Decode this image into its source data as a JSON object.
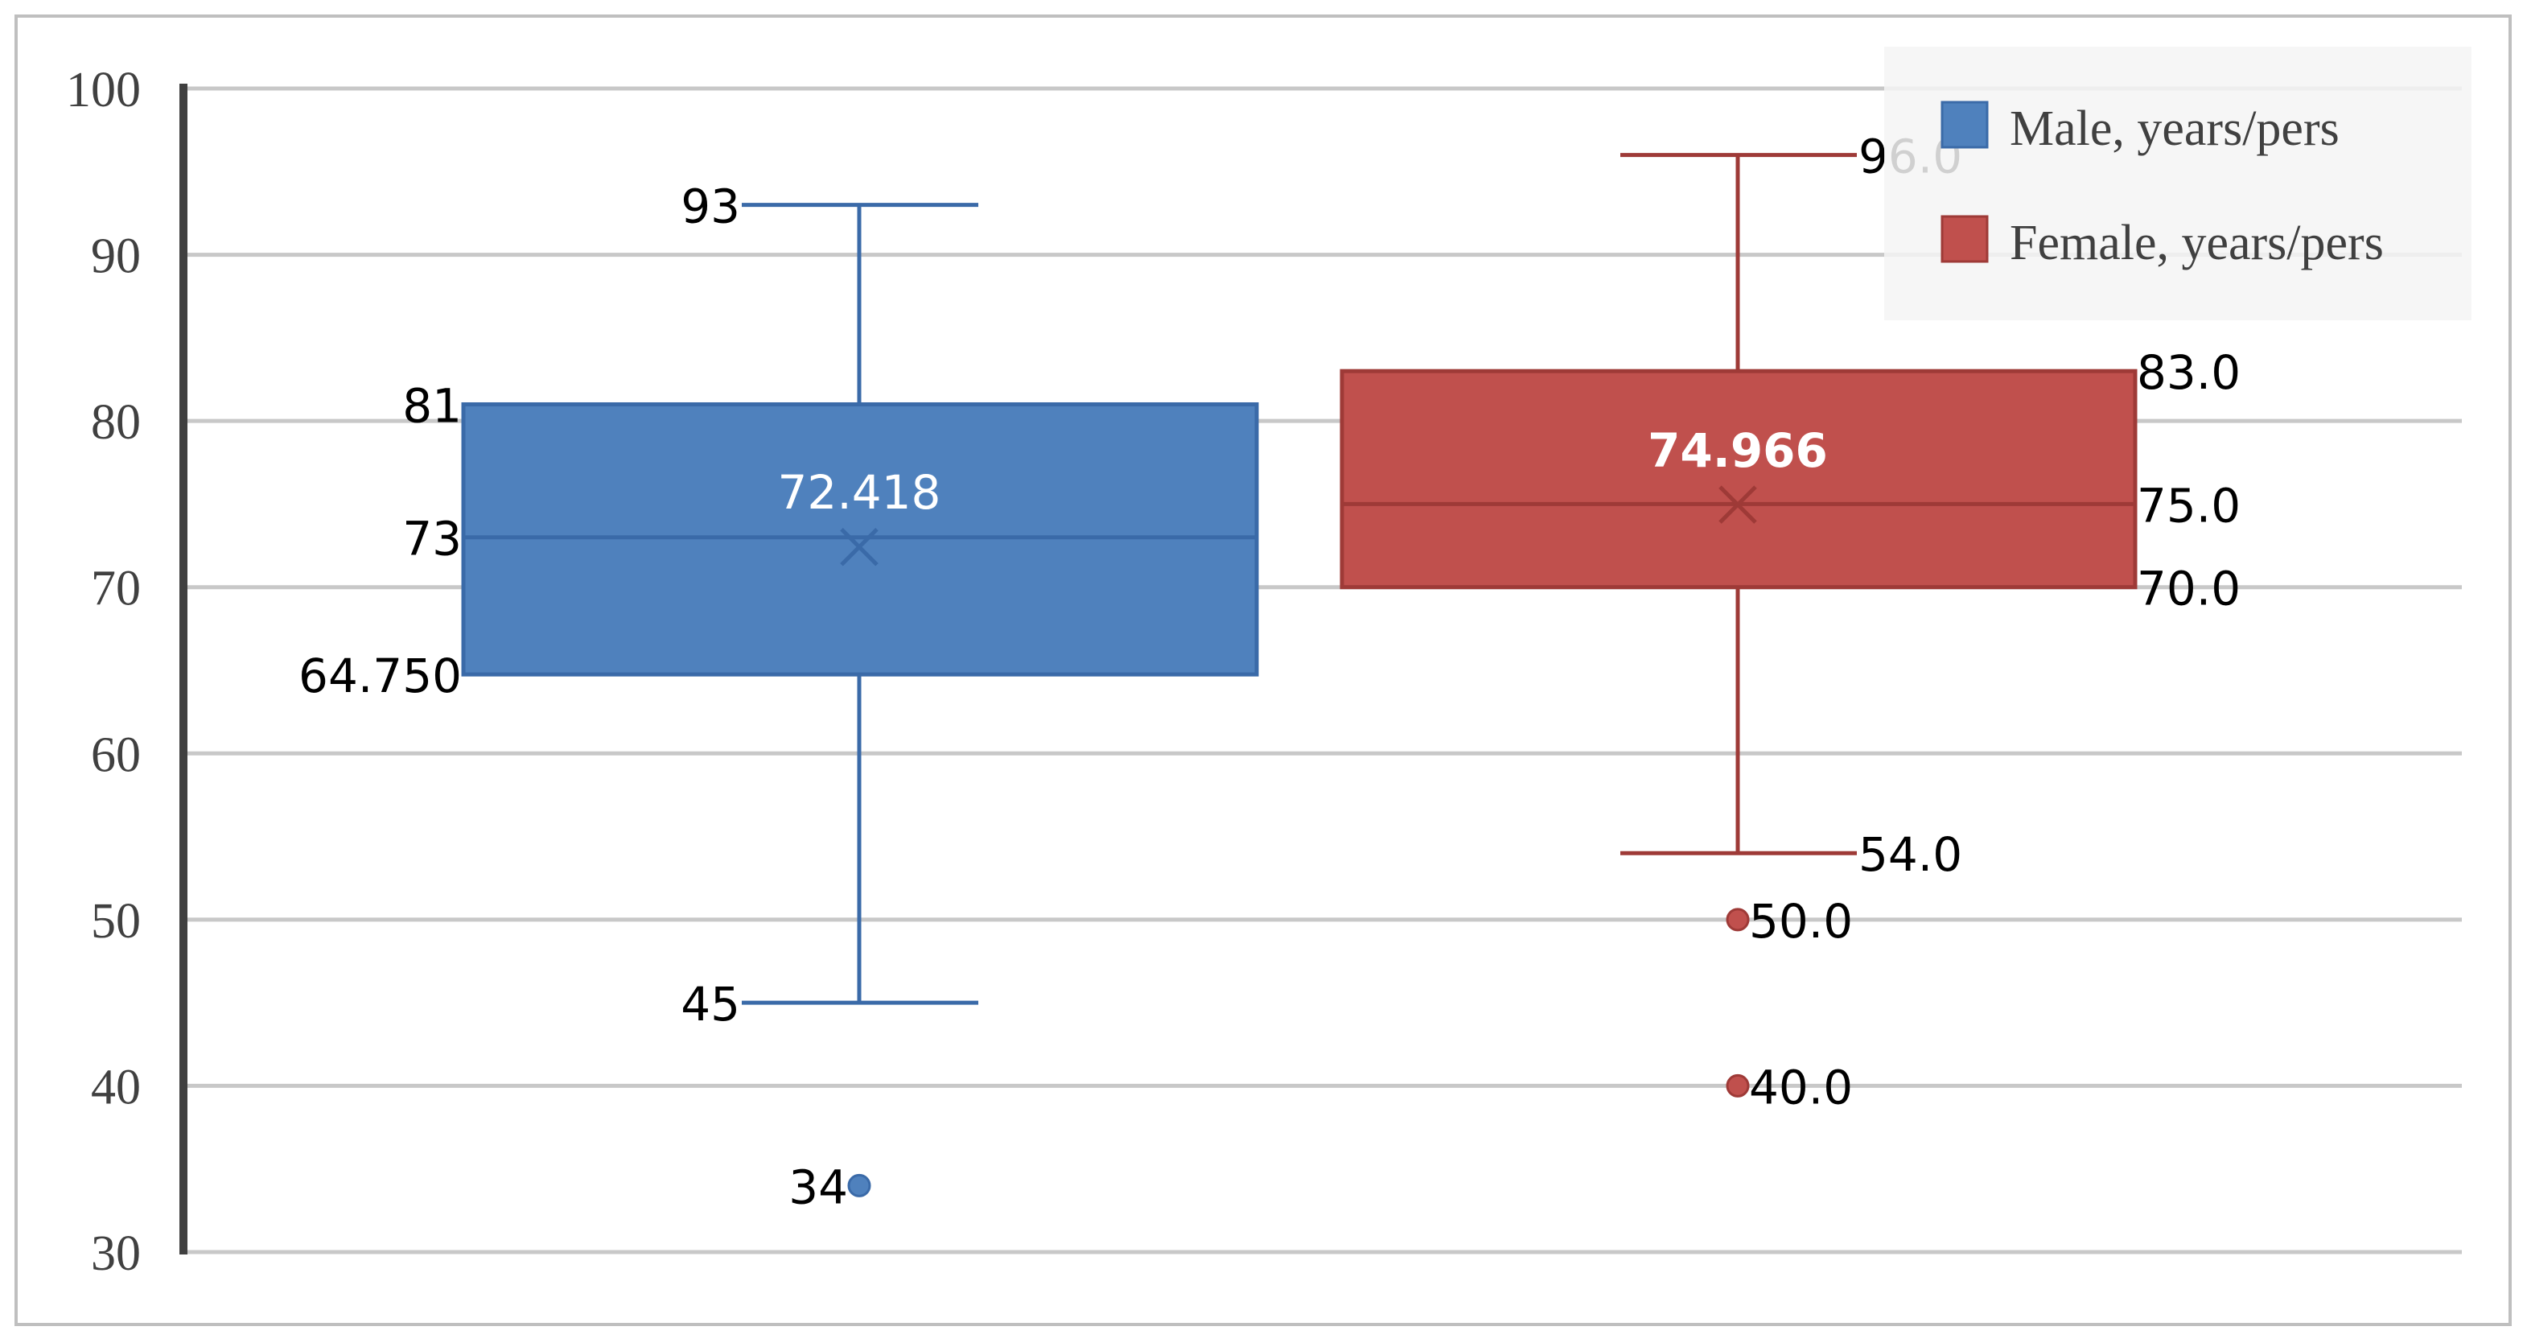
{
  "chart_data": {
    "type": "box",
    "title": "",
    "xlabel": "",
    "ylabel": "",
    "ylim": [
      30,
      100
    ],
    "yticks": [
      "30",
      "40",
      "50",
      "60",
      "70",
      "80",
      "90",
      "100"
    ],
    "grid": true,
    "legend_position": "top-right",
    "series": [
      {
        "name": "Male, years/pers",
        "color": "#4F81BD",
        "stroke": "#3A6AA8",
        "min": 45,
        "q1": 64.75,
        "median": 73,
        "q3": 81,
        "max": 93,
        "mean": 72.418,
        "outliers": [
          34
        ],
        "labels": {
          "min": "45",
          "q1": "64.750",
          "median": "73",
          "q3": "81",
          "max": "93",
          "mean": "72.418",
          "outliers": [
            "34"
          ]
        }
      },
      {
        "name": "Female, years/pers",
        "color": "#C0504D",
        "stroke": "#9E3A37",
        "min": 54,
        "q1": 70,
        "median": 75,
        "q3": 83,
        "max": 96,
        "mean": 74.966,
        "outliers": [
          50,
          40
        ],
        "labels": {
          "min": "54.0",
          "q1": "70.0",
          "median": "75.0",
          "q3": "83.0",
          "max": "96.0",
          "mean": "74.966",
          "outliers": [
            "50.0",
            "40.0"
          ]
        }
      }
    ]
  }
}
